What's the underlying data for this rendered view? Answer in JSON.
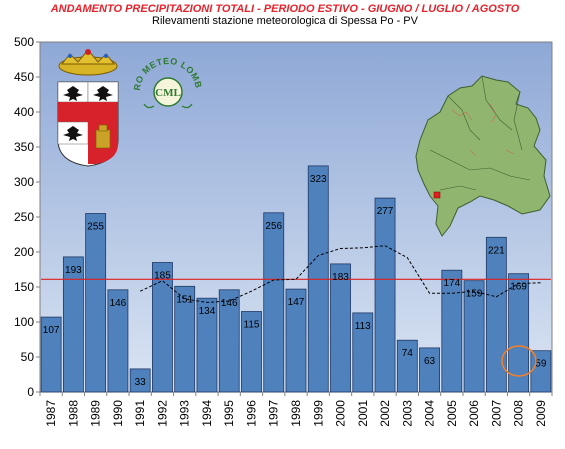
{
  "chart_data": {
    "type": "bar",
    "title": "ANDAMENTO PRECIPITAZIONI TOTALI -  PERIODO ESTIVO - GIUGNO / LUGLIO / AGOSTO",
    "subtitle": "Rilevamenti stazione meteorologica di Spessa Po - PV",
    "categories": [
      "1987",
      "1988",
      "1989",
      "1990",
      "1991",
      "1992",
      "1993",
      "1994",
      "1995",
      "1996",
      "1997",
      "1998",
      "1999",
      "2000",
      "2001",
      "2002",
      "2003",
      "2004",
      "2005",
      "2006",
      "2007",
      "2008",
      "2009"
    ],
    "values": [
      107,
      193,
      255,
      146,
      33,
      185,
      151,
      134,
      146,
      115,
      256,
      147,
      323,
      183,
      113,
      277,
      74,
      63,
      174,
      159,
      221,
      169,
      59
    ],
    "data_labels": [
      "107",
      "193",
      "255",
      "146",
      "33",
      "185",
      "151",
      "134",
      "146",
      "115",
      "256",
      "147",
      "323",
      "183",
      "113",
      "277",
      "74",
      "63",
      "174",
      "159",
      "221",
      "169",
      "59"
    ],
    "ylim": [
      0,
      500
    ],
    "yticks": [
      "0",
      "50",
      "100",
      "150",
      "200",
      "250",
      "300",
      "350",
      "400",
      "450",
      "500"
    ],
    "average_line": 161,
    "moving_average": [
      null,
      null,
      null,
      null,
      144,
      159,
      133,
      128,
      130,
      144,
      160,
      161,
      195,
      205,
      206,
      209,
      192,
      141,
      141,
      144,
      136,
      155,
      156
    ],
    "highlighted_category": "2009",
    "grid": false,
    "legend": "none",
    "colors": {
      "bar": "#4f81bd",
      "bar_border": "#203864",
      "average_line": "#e11f1f",
      "moving_average": "#000000",
      "highlight_circle": "#f58025",
      "title": "#e8232c",
      "plot_bg_top": "#8fa9d6",
      "plot_bg_bottom": "#d9e4f3"
    }
  },
  "logos": {
    "left": "Pavia province coat of arms",
    "center_text": "CENTRO METEO LOMBARDO",
    "center_monogram": "CML",
    "map": "Lombardy region map with Spessa Po location"
  }
}
